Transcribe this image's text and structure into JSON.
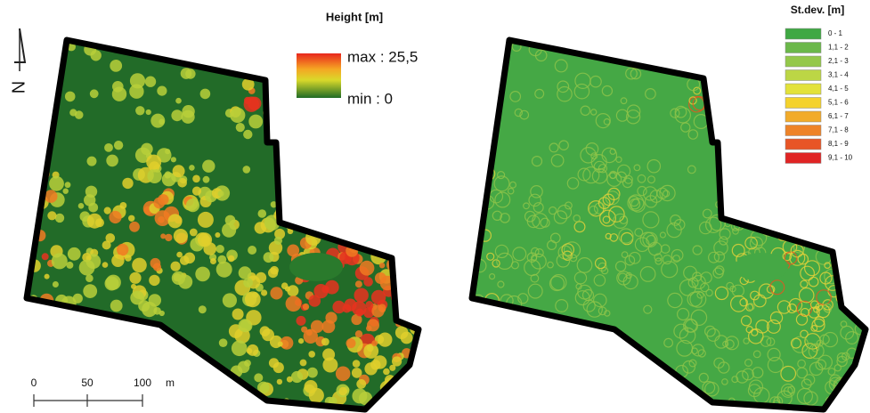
{
  "left_map": {
    "legend_title": "Height [m]",
    "max_label": "max : 25,5",
    "min_label": "min : 0"
  },
  "right_map": {
    "legend_title": "St.dev. [m]",
    "classes": [
      {
        "label": "0 - 1",
        "color": "#3fa843"
      },
      {
        "label": "1,1 - 2",
        "color": "#6bb84a"
      },
      {
        "label": "2,1 - 3",
        "color": "#94c84a"
      },
      {
        "label": "3,1 - 4",
        "color": "#bcd645"
      },
      {
        "label": "4,1 - 5",
        "color": "#e3e23a"
      },
      {
        "label": "5,1 - 6",
        "color": "#f4d22c"
      },
      {
        "label": "6,1 - 7",
        "color": "#f2ab2a"
      },
      {
        "label": "7,1 - 8",
        "color": "#ee8328"
      },
      {
        "label": "8,1 - 9",
        "color": "#e85526"
      },
      {
        "label": "9,1 - 10",
        "color": "#e02424"
      }
    ]
  },
  "north_arrow": {
    "label": "N"
  },
  "scale_bar": {
    "labels": [
      "0",
      "50",
      "100"
    ],
    "unit": "m"
  }
}
